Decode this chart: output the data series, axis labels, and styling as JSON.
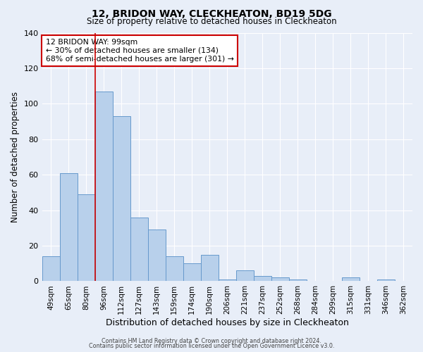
{
  "title1": "12, BRIDON WAY, CLECKHEATON, BD19 5DG",
  "title2": "Size of property relative to detached houses in Cleckheaton",
  "xlabel": "Distribution of detached houses by size in Cleckheaton",
  "ylabel": "Number of detached properties",
  "categories": [
    "49sqm",
    "65sqm",
    "80sqm",
    "96sqm",
    "112sqm",
    "127sqm",
    "143sqm",
    "159sqm",
    "174sqm",
    "190sqm",
    "206sqm",
    "221sqm",
    "237sqm",
    "252sqm",
    "268sqm",
    "284sqm",
    "299sqm",
    "315sqm",
    "331sqm",
    "346sqm",
    "362sqm"
  ],
  "values": [
    14,
    61,
    49,
    107,
    93,
    36,
    29,
    14,
    10,
    15,
    1,
    6,
    3,
    2,
    1,
    0,
    0,
    2,
    0,
    1,
    0
  ],
  "bar_color": "#b8d0eb",
  "bar_edge_color": "#6699cc",
  "background_color": "#e8eef8",
  "grid_color": "#ffffff",
  "vline_color": "#cc0000",
  "vline_index": 3,
  "ylim": [
    0,
    140
  ],
  "yticks": [
    0,
    20,
    40,
    60,
    80,
    100,
    120,
    140
  ],
  "annotation_title": "12 BRIDON WAY: 99sqm",
  "annotation_line1": "← 30% of detached houses are smaller (134)",
  "annotation_line2": "68% of semi-detached houses are larger (301) →",
  "annotation_box_facecolor": "#ffffff",
  "annotation_box_edgecolor": "#cc0000",
  "footer1": "Contains HM Land Registry data © Crown copyright and database right 2024.",
  "footer2": "Contains public sector information licensed under the Open Government Licence v3.0."
}
